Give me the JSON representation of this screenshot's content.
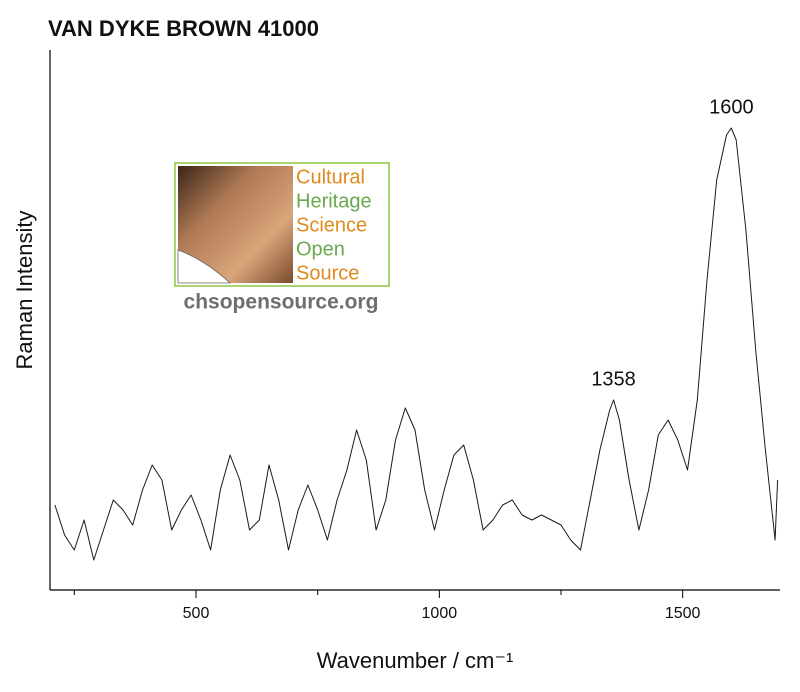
{
  "chart_data": {
    "type": "line",
    "title": "VAN DYKE BROWN 41000",
    "x_label": "Wavenumber / cm⁻¹",
    "y_label": "Raman Intensity",
    "x": [
      210,
      230,
      250,
      270,
      290,
      310,
      330,
      350,
      370,
      390,
      410,
      430,
      450,
      470,
      490,
      510,
      530,
      550,
      570,
      590,
      610,
      630,
      650,
      670,
      690,
      710,
      730,
      750,
      770,
      790,
      810,
      830,
      850,
      870,
      890,
      910,
      930,
      950,
      970,
      990,
      1010,
      1030,
      1050,
      1070,
      1090,
      1110,
      1130,
      1150,
      1170,
      1190,
      1210,
      1230,
      1250,
      1270,
      1290,
      1310,
      1330,
      1350,
      1358,
      1370,
      1390,
      1410,
      1430,
      1450,
      1470,
      1490,
      1510,
      1530,
      1550,
      1570,
      1590,
      1600,
      1610,
      1630,
      1650,
      1670,
      1690,
      1695
    ],
    "series": [
      {
        "color": "#1a1a1a",
        "values": [
          85,
          55,
          40,
          70,
          30,
          60,
          90,
          80,
          65,
          100,
          125,
          110,
          60,
          80,
          95,
          70,
          40,
          100,
          135,
          110,
          60,
          70,
          125,
          90,
          40,
          80,
          105,
          80,
          50,
          90,
          120,
          160,
          130,
          60,
          90,
          150,
          182,
          160,
          100,
          60,
          100,
          135,
          145,
          110,
          60,
          70,
          85,
          90,
          75,
          70,
          75,
          70,
          65,
          50,
          40,
          90,
          140,
          180,
          190,
          170,
          110,
          60,
          100,
          155,
          170,
          150,
          120,
          190,
          310,
          410,
          455,
          462,
          450,
          360,
          240,
          140,
          50,
          110
        ]
      }
    ],
    "xlim": [
      200,
      1700
    ],
    "ylim": [
      0,
      540
    ],
    "xticks": [
      500,
      1000,
      1500
    ],
    "xminorticks": [
      250,
      750,
      1250
    ],
    "peak_labels": [
      1358,
      1600
    ]
  },
  "logo": {
    "lines": [
      "Cultural",
      "Heritage",
      "Science",
      "Open",
      "Source"
    ],
    "url": "chsopensource.org"
  }
}
